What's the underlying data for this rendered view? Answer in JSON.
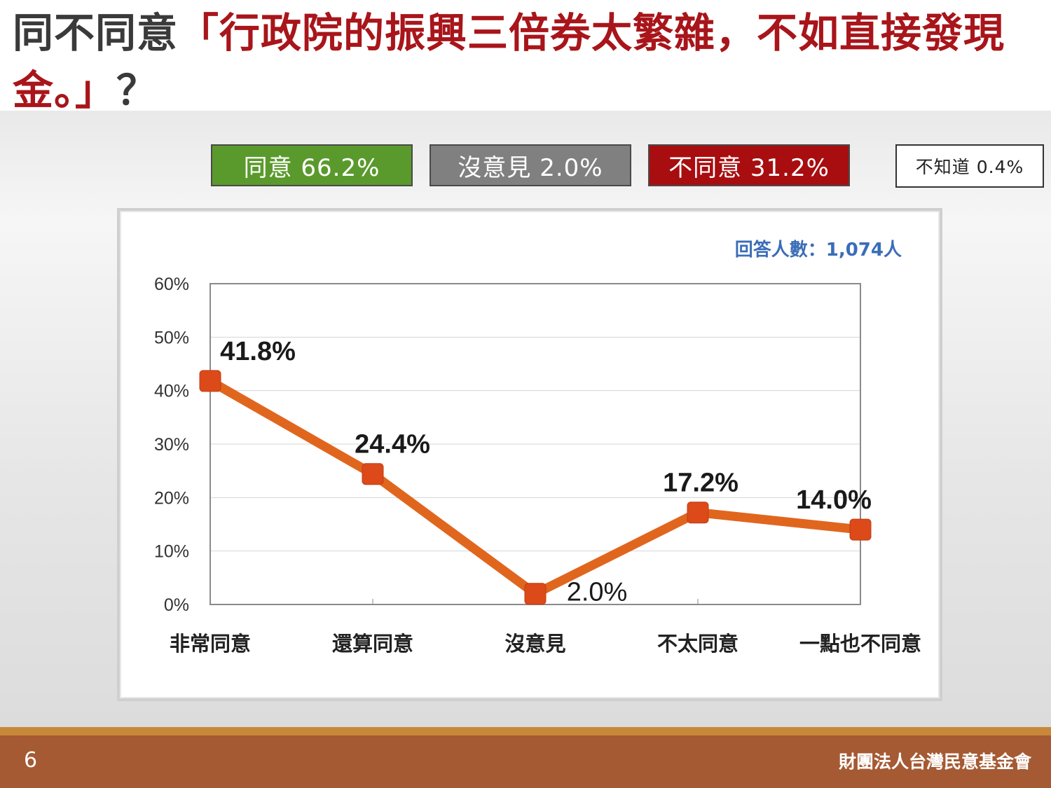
{
  "title": {
    "prefix": "同不同意",
    "quote": "「行政院的振興三倍券太繁雜，不如直接發現金。」",
    "suffix": "？"
  },
  "summary": {
    "agree": "同意 66.2%",
    "neutral": "沒意見 2.0%",
    "disagree": "不同意 31.2%",
    "dunno": "不知道 0.4%"
  },
  "respondents": "回答人數：1,074人",
  "colors": {
    "line": "#e0661e",
    "marker": "#dc4a1a",
    "respondents": "#3b6db8",
    "agree": "#5a9a2c",
    "neutral": "#808080",
    "disagree": "#a80d10"
  },
  "chart_data": {
    "type": "line",
    "categories": [
      "非常同意",
      "還算同意",
      "沒意見",
      "不太同意",
      "一點也不同意"
    ],
    "values": [
      41.8,
      24.4,
      2.0,
      17.2,
      14.0
    ],
    "data_labels": [
      "41.8%",
      "24.4%",
      "2.0%",
      "17.2%",
      "14.0%"
    ],
    "ylim": [
      0,
      60
    ],
    "yticks": [
      "0%",
      "10%",
      "20%",
      "30%",
      "40%",
      "50%",
      "60%"
    ],
    "grid": true,
    "legend": "none"
  },
  "footer": {
    "page_number": "6",
    "organization": "財團法人台灣民意基金會"
  }
}
